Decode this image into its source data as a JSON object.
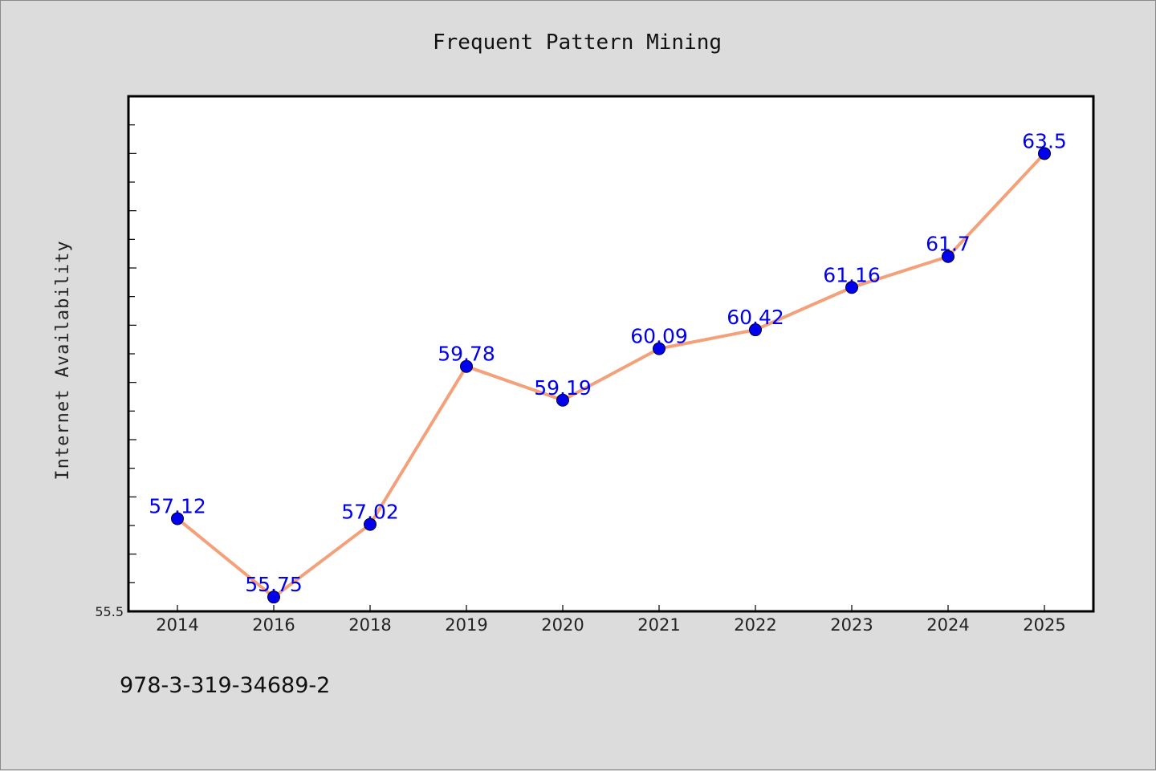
{
  "chart_data": {
    "type": "line",
    "title": "Frequent Pattern Mining",
    "xlabel": "",
    "ylabel": "Internet Availability",
    "categories": [
      "2014",
      "2016",
      "2018",
      "2019",
      "2020",
      "2021",
      "2022",
      "2023",
      "2024",
      "2025"
    ],
    "series": [
      {
        "values": [
          57.12,
          55.75,
          57.02,
          59.78,
          59.19,
          60.09,
          60.42,
          61.16,
          61.7,
          63.5
        ],
        "labels": [
          "57.12",
          "55.75",
          "57.02",
          "59.78",
          "59.19",
          "60.09",
          "60.42",
          "61.16",
          "61.7",
          "63.5"
        ]
      }
    ],
    "ylim": [
      55.5,
      64.5
    ],
    "ytick_labels": [
      "55.5"
    ],
    "grid": false,
    "legend": "none",
    "colors": {
      "line": "#f4a07a",
      "marker": "#0000ee",
      "data_label": "#0000ee",
      "plot_background": "#ffffff",
      "figure_background": "#dcdcdc"
    }
  },
  "footer": {
    "isbn": "978-3-319-34689-2"
  }
}
